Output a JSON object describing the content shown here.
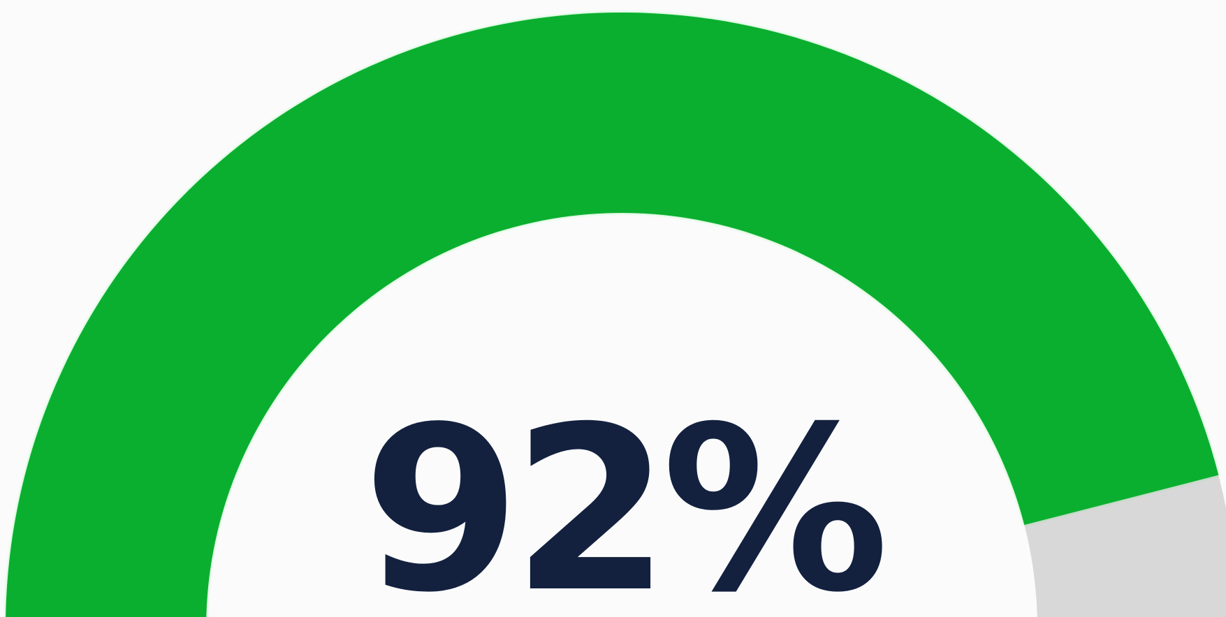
{
  "chart_data": {
    "type": "gauge",
    "value": 92,
    "min": 0,
    "max": 100,
    "value_label": "92%",
    "colors": {
      "filled": "#0aaf2f",
      "track": "#d8d8d8",
      "text": "#13213f",
      "background": "#fbfbfb"
    }
  }
}
